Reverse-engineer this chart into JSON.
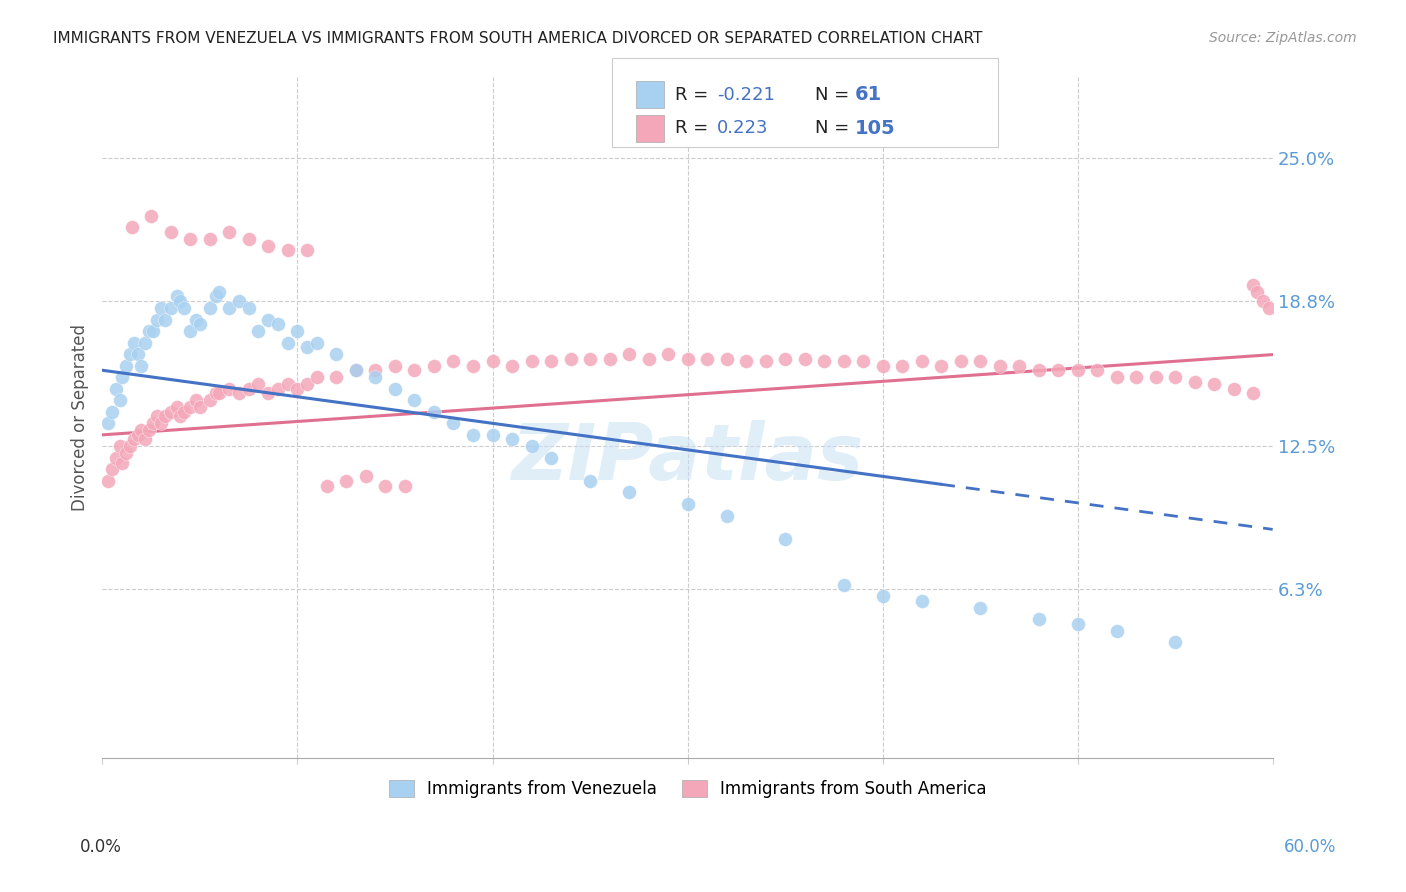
{
  "title": "IMMIGRANTS FROM VENEZUELA VS IMMIGRANTS FROM SOUTH AMERICA DIVORCED OR SEPARATED CORRELATION CHART",
  "source": "Source: ZipAtlas.com",
  "ylabel": "Divorced or Separated",
  "ytick_labels": [
    "25.0%",
    "18.8%",
    "12.5%",
    "6.3%"
  ],
  "ytick_values": [
    0.25,
    0.188,
    0.125,
    0.063
  ],
  "xlim": [
    0.0,
    0.6
  ],
  "ylim": [
    -0.01,
    0.285
  ],
  "color_blue": "#a8d0f0",
  "color_pink": "#f4a7b9",
  "color_blue_dark": "#4472c4",
  "color_pink_dark": "#e07090",
  "watermark": "ZIPatlas",
  "blue_dots_x": [
    0.003,
    0.005,
    0.007,
    0.009,
    0.01,
    0.012,
    0.014,
    0.016,
    0.018,
    0.02,
    0.022,
    0.024,
    0.026,
    0.028,
    0.03,
    0.032,
    0.035,
    0.038,
    0.04,
    0.042,
    0.045,
    0.048,
    0.05,
    0.055,
    0.058,
    0.06,
    0.065,
    0.07,
    0.075,
    0.08,
    0.085,
    0.09,
    0.095,
    0.1,
    0.105,
    0.11,
    0.12,
    0.13,
    0.14,
    0.15,
    0.16,
    0.17,
    0.18,
    0.19,
    0.2,
    0.21,
    0.22,
    0.23,
    0.25,
    0.27,
    0.3,
    0.32,
    0.35,
    0.38,
    0.4,
    0.42,
    0.45,
    0.48,
    0.5,
    0.52,
    0.55
  ],
  "blue_dots_y": [
    0.135,
    0.14,
    0.15,
    0.145,
    0.155,
    0.16,
    0.165,
    0.17,
    0.165,
    0.16,
    0.17,
    0.175,
    0.175,
    0.18,
    0.185,
    0.18,
    0.185,
    0.19,
    0.188,
    0.185,
    0.175,
    0.18,
    0.178,
    0.185,
    0.19,
    0.192,
    0.185,
    0.188,
    0.185,
    0.175,
    0.18,
    0.178,
    0.17,
    0.175,
    0.168,
    0.17,
    0.165,
    0.158,
    0.155,
    0.15,
    0.145,
    0.14,
    0.135,
    0.13,
    0.13,
    0.128,
    0.125,
    0.12,
    0.11,
    0.105,
    0.1,
    0.095,
    0.085,
    0.065,
    0.06,
    0.058,
    0.055,
    0.05,
    0.048,
    0.045,
    0.04
  ],
  "pink_dots_x": [
    0.003,
    0.005,
    0.007,
    0.009,
    0.01,
    0.012,
    0.014,
    0.016,
    0.018,
    0.02,
    0.022,
    0.024,
    0.026,
    0.028,
    0.03,
    0.032,
    0.035,
    0.038,
    0.04,
    0.042,
    0.045,
    0.048,
    0.05,
    0.055,
    0.058,
    0.06,
    0.065,
    0.07,
    0.075,
    0.08,
    0.085,
    0.09,
    0.095,
    0.1,
    0.105,
    0.11,
    0.12,
    0.13,
    0.14,
    0.15,
    0.16,
    0.17,
    0.18,
    0.19,
    0.2,
    0.21,
    0.22,
    0.23,
    0.24,
    0.25,
    0.26,
    0.27,
    0.28,
    0.29,
    0.3,
    0.31,
    0.32,
    0.33,
    0.34,
    0.35,
    0.36,
    0.37,
    0.38,
    0.39,
    0.4,
    0.41,
    0.42,
    0.43,
    0.44,
    0.45,
    0.46,
    0.47,
    0.48,
    0.49,
    0.5,
    0.51,
    0.52,
    0.53,
    0.54,
    0.55,
    0.56,
    0.57,
    0.58,
    0.59,
    0.59,
    0.592,
    0.595,
    0.598,
    0.015,
    0.025,
    0.035,
    0.045,
    0.055,
    0.065,
    0.075,
    0.085,
    0.095,
    0.105,
    0.115,
    0.125,
    0.135,
    0.145,
    0.155
  ],
  "pink_dots_y": [
    0.11,
    0.115,
    0.12,
    0.125,
    0.118,
    0.122,
    0.125,
    0.128,
    0.13,
    0.132,
    0.128,
    0.132,
    0.135,
    0.138,
    0.135,
    0.138,
    0.14,
    0.142,
    0.138,
    0.14,
    0.142,
    0.145,
    0.142,
    0.145,
    0.148,
    0.148,
    0.15,
    0.148,
    0.15,
    0.152,
    0.148,
    0.15,
    0.152,
    0.15,
    0.152,
    0.155,
    0.155,
    0.158,
    0.158,
    0.16,
    0.158,
    0.16,
    0.162,
    0.16,
    0.162,
    0.16,
    0.162,
    0.162,
    0.163,
    0.163,
    0.163,
    0.165,
    0.163,
    0.165,
    0.163,
    0.163,
    0.163,
    0.162,
    0.162,
    0.163,
    0.163,
    0.162,
    0.162,
    0.162,
    0.16,
    0.16,
    0.162,
    0.16,
    0.162,
    0.162,
    0.16,
    0.16,
    0.158,
    0.158,
    0.158,
    0.158,
    0.155,
    0.155,
    0.155,
    0.155,
    0.153,
    0.152,
    0.15,
    0.148,
    0.195,
    0.192,
    0.188,
    0.185,
    0.22,
    0.225,
    0.218,
    0.215,
    0.215,
    0.218,
    0.215,
    0.212,
    0.21,
    0.21,
    0.108,
    0.11,
    0.112,
    0.108,
    0.108
  ]
}
